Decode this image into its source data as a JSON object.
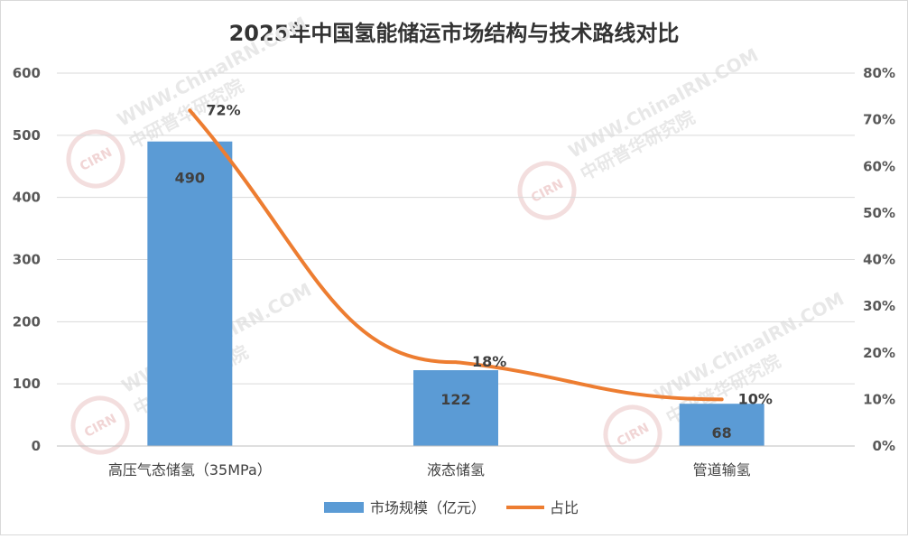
{
  "chart_data": {
    "type": "bar",
    "title": "2025年中国氢能储运市场结构与技术路线对比",
    "categories": [
      "高压气态储氢（35MPa）",
      "液态储氢",
      "管道输氢"
    ],
    "series": [
      {
        "name": "市场规模（亿元）",
        "kind": "bar",
        "axis": "left",
        "color": "#5b9bd5",
        "values": [
          490,
          122,
          68
        ],
        "labels": [
          "490",
          "122",
          "68"
        ]
      },
      {
        "name": "占比",
        "kind": "line",
        "axis": "right",
        "color": "#ed7d31",
        "values": [
          72,
          18,
          10
        ],
        "labels": [
          "72%",
          "18%",
          "10%"
        ]
      }
    ],
    "y_left": {
      "min": 0,
      "max": 600,
      "ticks": [
        "0",
        "100",
        "200",
        "300",
        "400",
        "500",
        "600"
      ]
    },
    "y_right": {
      "min": 0,
      "max": 80,
      "ticks": [
        "0%",
        "10%",
        "20%",
        "30%",
        "40%",
        "50%",
        "60%",
        "70%",
        "80%"
      ]
    },
    "grid": true,
    "legend": "bottom",
    "watermark": {
      "url": "WWW.ChinaIRN.COM",
      "name": "中研普华研究院",
      "logo": "CIRN"
    }
  }
}
